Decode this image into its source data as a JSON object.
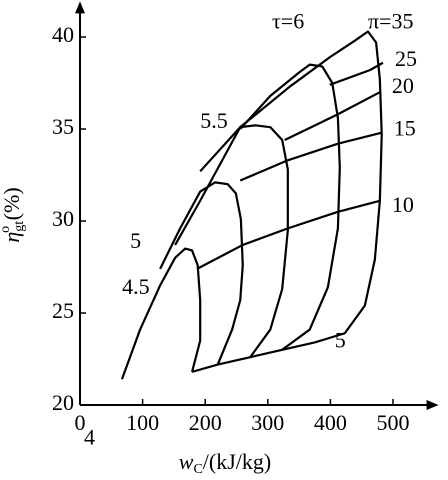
{
  "chart_data": {
    "type": "line",
    "xlabel": "w",
    "xlabel_sub": "C",
    "xlabel_unit": "/(kJ/kg)",
    "ylabel": "η",
    "ylabel_sub": "gt",
    "ylabel_sup": "o",
    "ylabel_unit": " (%)",
    "xlim": [
      0,
      560
    ],
    "ylim": [
      20,
      41.5
    ],
    "xticks": [
      0,
      100,
      200,
      300,
      400,
      500
    ],
    "yticks": [
      20,
      25,
      30,
      35,
      40
    ],
    "color": "#000000",
    "series": [
      {
        "name": "4",
        "x": [
          67,
          96,
          128,
          152,
          168,
          179,
          188,
          192,
          192,
          179
        ],
        "values": [
          21.4,
          24.1,
          26.5,
          28.0,
          28.5,
          28.4,
          27.6,
          25.7,
          23.5,
          21.8
        ]
      },
      {
        "name": "4.5",
        "x": [
          128,
          160,
          192,
          216,
          236,
          249,
          257,
          260,
          256,
          243,
          220
        ],
        "values": [
          27.4,
          29.6,
          31.6,
          32.1,
          32.0,
          31.5,
          30.1,
          27.6,
          25.7,
          24.1,
          22.2
        ]
      },
      {
        "name": "5",
        "x": [
          152,
          192,
          256,
          280,
          304,
          323,
          332,
          332,
          323,
          304,
          272
        ],
        "values": [
          28.7,
          31.1,
          35.1,
          35.2,
          35.1,
          34.4,
          32.8,
          29.5,
          26.3,
          24.1,
          22.6
        ]
      },
      {
        "name": "5.5",
        "x": [
          256,
          304,
          351,
          367,
          387,
          403,
          412,
          415,
          412,
          396,
          367,
          323
        ],
        "values": [
          35.0,
          36.8,
          38.1,
          38.5,
          38.4,
          37.5,
          35.6,
          32.9,
          29.6,
          26.4,
          24.1,
          23.0
        ]
      },
      {
        "name": "τ=6",
        "x": [
          192,
          256,
          335,
          399,
          439,
          460,
          473,
          479,
          482,
          479,
          471,
          455,
          423,
          375
        ],
        "values": [
          32.7,
          35.1,
          37.3,
          38.9,
          39.8,
          40.3,
          39.7,
          37.7,
          34.7,
          31.1,
          27.9,
          25.4,
          23.9,
          23.4
        ]
      },
      {
        "name": "5",
        "x": [
          179,
          220,
          272,
          323,
          375
        ],
        "values": [
          21.8,
          22.2,
          22.6,
          23.0,
          23.4
        ]
      },
      {
        "name": "10",
        "x": [
          187,
          260,
          332,
          412,
          479
        ],
        "values": [
          27.4,
          28.7,
          29.6,
          30.5,
          31.1
        ]
      },
      {
        "name": "15",
        "x": [
          256,
          332,
          412,
          482
        ],
        "values": [
          32.2,
          33.3,
          34.2,
          34.8
        ]
      },
      {
        "name": "20",
        "x": [
          327,
          412,
          479
        ],
        "values": [
          34.4,
          35.8,
          37.0
        ]
      },
      {
        "name": "25",
        "x": [
          399,
          463,
          484
        ],
        "values": [
          37.4,
          38.2,
          38.6
        ]
      },
      {
        "name": "π=35",
        "x": [
          460
        ],
        "values": [
          40.3
        ]
      }
    ]
  }
}
